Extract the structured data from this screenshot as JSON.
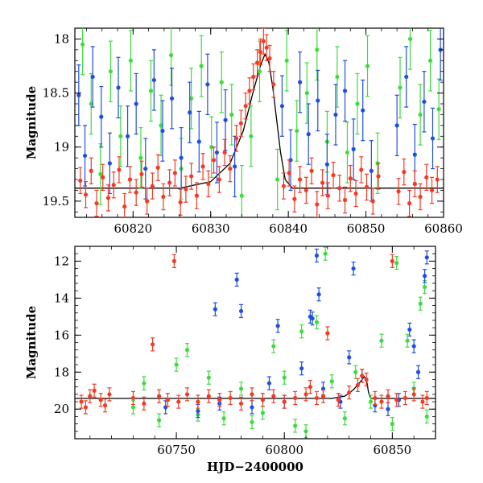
{
  "chart_data": [
    {
      "type": "scatter",
      "panel": "top",
      "xlabel": "",
      "ylabel": "Magnitude",
      "xlim": [
        60812.5,
        60860
      ],
      "ylim": [
        19.65,
        17.9
      ],
      "y_inverted": true,
      "xticks": [
        60820,
        60830,
        60840,
        60850,
        60860
      ],
      "yticks": [
        18,
        18.5,
        19,
        19.5
      ],
      "colors": {
        "blue": "#1f4fe0",
        "green": "#3ddc3d",
        "red": "#f23a24",
        "model": "#000000"
      },
      "series": [
        {
          "color": "red",
          "points": [
            [
              60813.2,
              19.31
            ],
            [
              60813.9,
              19.44
            ],
            [
              60814.6,
              19.22
            ],
            [
              60815.3,
              19.52
            ],
            [
              60816.1,
              19.28
            ],
            [
              60816.8,
              19.47
            ],
            [
              60817.5,
              19.35
            ],
            [
              60818.2,
              19.21
            ],
            [
              60818.9,
              19.55
            ],
            [
              60819.6,
              19.3
            ],
            [
              60820.4,
              19.42
            ],
            [
              60821.1,
              19.25
            ],
            [
              60821.8,
              19.5
            ],
            [
              60822.5,
              19.36
            ],
            [
              60823.2,
              19.19
            ],
            [
              60823.9,
              19.46
            ],
            [
              60824.7,
              19.33
            ],
            [
              60825.4,
              19.24
            ],
            [
              60826.1,
              19.51
            ],
            [
              60826.8,
              19.39
            ],
            [
              60827.5,
              19.27
            ],
            [
              60828.2,
              19.45
            ],
            [
              60829.0,
              19.18
            ],
            [
              60829.7,
              19.34
            ],
            [
              60830.4,
              19.12
            ],
            [
              60831.1,
              19.3
            ],
            [
              60831.8,
              19.05
            ],
            [
              60832.5,
              19.2
            ],
            [
              60833.3,
              18.92
            ],
            [
              60833.9,
              18.78
            ],
            [
              60834.5,
              18.62
            ],
            [
              60835.0,
              18.48
            ],
            [
              60835.5,
              18.35
            ],
            [
              60836.0,
              18.22
            ],
            [
              60836.4,
              18.12
            ],
            [
              60836.8,
              18.02
            ],
            [
              60837.2,
              18.08
            ],
            [
              60837.6,
              18.18
            ],
            [
              60838.1,
              18.42
            ],
            [
              60839.4,
              19.36
            ],
            [
              60840.1,
              19.24
            ],
            [
              60840.8,
              19.48
            ],
            [
              60841.5,
              19.3
            ],
            [
              60842.3,
              19.4
            ],
            [
              60843.0,
              19.22
            ],
            [
              60843.7,
              19.53
            ],
            [
              60844.4,
              19.33
            ],
            [
              60845.1,
              19.45
            ],
            [
              60845.8,
              19.26
            ],
            [
              60846.6,
              19.38
            ],
            [
              60847.3,
              19.49
            ],
            [
              60848.0,
              19.29
            ],
            [
              60848.7,
              19.43
            ],
            [
              60849.4,
              19.21
            ],
            [
              60850.1,
              19.37
            ],
            [
              60850.9,
              19.5
            ],
            [
              60851.6,
              19.27
            ],
            [
              60854.2,
              19.41
            ],
            [
              60854.9,
              19.23
            ],
            [
              60855.6,
              19.52
            ],
            [
              60856.3,
              19.34
            ],
            [
              60857.0,
              19.46
            ],
            [
              60857.8,
              19.28
            ],
            [
              60858.5,
              19.4
            ],
            [
              60859.2,
              19.3
            ]
          ]
        },
        {
          "color": "blue",
          "points": [
            [
              60813.0,
              18.52
            ],
            [
              60813.8,
              19.08
            ],
            [
              60814.8,
              18.35
            ],
            [
              60815.9,
              18.72
            ],
            [
              60817.0,
              19.15
            ],
            [
              60818.1,
              18.45
            ],
            [
              60819.3,
              18.9
            ],
            [
              60820.4,
              18.6
            ],
            [
              60821.6,
              19.2
            ],
            [
              60822.7,
              18.38
            ],
            [
              60823.8,
              18.85
            ],
            [
              60825.0,
              18.55
            ],
            [
              60826.2,
              19.1
            ],
            [
              60827.3,
              18.68
            ],
            [
              60828.5,
              18.95
            ],
            [
              60829.6,
              18.42
            ],
            [
              60830.8,
              19.05
            ],
            [
              60831.9,
              18.75
            ],
            [
              60833.1,
              19.18
            ],
            [
              60839.2,
              18.62
            ],
            [
              60840.3,
              19.12
            ],
            [
              60841.5,
              18.4
            ],
            [
              60842.6,
              18.88
            ],
            [
              60843.8,
              18.57
            ],
            [
              60845.0,
              19.16
            ],
            [
              60846.1,
              18.7
            ],
            [
              60847.3,
              18.48
            ],
            [
              60848.4,
              19.02
            ],
            [
              60849.6,
              18.66
            ],
            [
              60850.7,
              19.22
            ],
            [
              60854.0,
              18.8
            ],
            [
              60855.2,
              18.35
            ],
            [
              60856.3,
              19.07
            ],
            [
              60857.5,
              18.58
            ],
            [
              60858.6,
              18.92
            ],
            [
              60859.6,
              18.1
            ]
          ]
        },
        {
          "color": "green",
          "points": [
            [
              60813.5,
              18.05
            ],
            [
              60814.6,
              18.6
            ],
            [
              60815.8,
              19.25
            ],
            [
              60817.1,
              18.3
            ],
            [
              60818.4,
              18.9
            ],
            [
              60819.7,
              18.2
            ],
            [
              60821.0,
              19.1
            ],
            [
              60822.3,
              18.48
            ],
            [
              60823.6,
              18.8
            ],
            [
              60824.9,
              18.15
            ],
            [
              60826.2,
              19.2
            ],
            [
              60827.5,
              18.55
            ],
            [
              60828.8,
              18.25
            ],
            [
              60830.1,
              19.0
            ],
            [
              60831.4,
              18.4
            ],
            [
              60832.7,
              18.7
            ],
            [
              60834.0,
              19.45
            ],
            [
              60835.2,
              18.9
            ],
            [
              60836.3,
              18.3
            ],
            [
              60838.6,
              19.3
            ],
            [
              60839.8,
              18.2
            ],
            [
              60841.1,
              18.85
            ],
            [
              60842.4,
              18.5
            ],
            [
              60843.7,
              18.1
            ],
            [
              60845.0,
              18.95
            ],
            [
              60846.3,
              18.35
            ],
            [
              60847.6,
              19.05
            ],
            [
              60848.9,
              18.6
            ],
            [
              60850.2,
              18.25
            ],
            [
              60851.5,
              19.15
            ],
            [
              60854.4,
              18.45
            ],
            [
              60855.7,
              18.0
            ],
            [
              60857.0,
              18.7
            ],
            [
              60858.3,
              18.2
            ],
            [
              60859.4,
              18.65
            ]
          ]
        }
      ],
      "model": [
        [
          60812.5,
          19.38
        ],
        [
          60826.0,
          19.38
        ],
        [
          60830.0,
          19.32
        ],
        [
          60832.5,
          19.15
        ],
        [
          60834.2,
          18.85
        ],
        [
          60835.5,
          18.48
        ],
        [
          60836.4,
          18.25
        ],
        [
          60837.0,
          18.14
        ],
        [
          60837.5,
          18.22
        ],
        [
          60838.0,
          18.45
        ],
        [
          60838.5,
          18.75
        ],
        [
          60839.0,
          19.05
        ],
        [
          60839.6,
          19.3
        ],
        [
          60840.5,
          19.38
        ],
        [
          60860.0,
          19.38
        ]
      ]
    },
    {
      "type": "scatter",
      "panel": "bottom",
      "xlabel": "HJD−2400000",
      "ylabel": "Magnitude",
      "xlim": [
        60703,
        60870
      ],
      "ylim": [
        21.6,
        11.2
      ],
      "y_inverted": true,
      "xticks": [
        60750,
        60800,
        60850
      ],
      "yticks": [
        12,
        14,
        16,
        18,
        20
      ],
      "colors": {
        "blue": "#1f4fe0",
        "green": "#3ddc3d",
        "red": "#f23a24",
        "model": "#000000"
      },
      "series": [
        {
          "color": "red",
          "points": [
            [
              60706,
              19.6
            ],
            [
              60708,
              19.9
            ],
            [
              60710,
              19.3
            ],
            [
              60712,
              19.0
            ],
            [
              60715,
              19.5
            ],
            [
              60717,
              19.8
            ],
            [
              60719,
              19.2
            ],
            [
              60730,
              19.4
            ],
            [
              60735,
              19.7
            ],
            [
              60739,
              16.5
            ],
            [
              60742,
              19.3
            ],
            [
              60746,
              19.5
            ],
            [
              60749,
              12.0
            ],
            [
              60751,
              19.6
            ],
            [
              60755,
              19.2
            ],
            [
              60760,
              19.6
            ],
            [
              60765,
              19.3
            ],
            [
              60770,
              19.5
            ],
            [
              60775,
              19.4
            ],
            [
              60780,
              19.7
            ],
            [
              60785,
              19.2
            ],
            [
              60790,
              19.5
            ],
            [
              60795,
              19.3
            ],
            [
              60800,
              19.6
            ],
            [
              60805,
              19.4
            ],
            [
              60810,
              19.2
            ],
            [
              60812,
              18.8
            ],
            [
              60815,
              19.4
            ],
            [
              60818,
              19.3
            ],
            [
              60820,
              15.9
            ],
            [
              60825,
              19.5
            ],
            [
              60830,
              19.1
            ],
            [
              60834,
              18.7
            ],
            [
              60836,
              18.2
            ],
            [
              60838,
              18.4
            ],
            [
              60842,
              19.4
            ],
            [
              60845,
              19.6
            ],
            [
              60848,
              19.3
            ],
            [
              60850,
              12.0
            ],
            [
              60852,
              19.5
            ],
            [
              60856,
              19.4
            ],
            [
              60860,
              19.2
            ],
            [
              60864,
              19.6
            ],
            [
              60866,
              19.4
            ]
          ]
        },
        {
          "color": "blue",
          "points": [
            [
              60745,
              19.9
            ],
            [
              60760,
              20.1
            ],
            [
              60768,
              14.6
            ],
            [
              60770,
              19.7
            ],
            [
              60778,
              13.0
            ],
            [
              60780,
              14.7
            ],
            [
              60785,
              19.9
            ],
            [
              60793,
              18.6
            ],
            [
              60797,
              15.5
            ],
            [
              60800,
              19.6
            ],
            [
              60808,
              17.8
            ],
            [
              60812,
              15.0
            ],
            [
              60813,
              15.1
            ],
            [
              60815,
              11.7
            ],
            [
              60816,
              13.8
            ],
            [
              60818,
              18.9
            ],
            [
              60826,
              19.6
            ],
            [
              60830,
              17.2
            ],
            [
              60832,
              12.4
            ],
            [
              60836,
              18.2
            ],
            [
              60842,
              19.8
            ],
            [
              60848,
              20.0
            ],
            [
              60853,
              19.5
            ],
            [
              60858,
              15.7
            ],
            [
              60860,
              16.6
            ],
            [
              60862,
              18.0
            ],
            [
              60865,
              12.8
            ],
            [
              60866,
              11.8
            ]
          ]
        },
        {
          "color": "green",
          "points": [
            [
              60730,
              19.9
            ],
            [
              60735,
              18.6
            ],
            [
              60742,
              20.6
            ],
            [
              60750,
              17.6
            ],
            [
              60755,
              16.8
            ],
            [
              60760,
              20.3
            ],
            [
              60765,
              18.3
            ],
            [
              60772,
              20.5
            ],
            [
              60780,
              18.9
            ],
            [
              60785,
              20.7
            ],
            [
              60790,
              20.2
            ],
            [
              60795,
              16.6
            ],
            [
              60800,
              18.3
            ],
            [
              60805,
              20.9
            ],
            [
              60808,
              15.8
            ],
            [
              60810,
              21.2
            ],
            [
              60815,
              15.3
            ],
            [
              60819,
              11.6
            ],
            [
              60822,
              18.5
            ],
            [
              60828,
              20.5
            ],
            [
              60833,
              18.0
            ],
            [
              60840,
              19.6
            ],
            [
              60845,
              16.3
            ],
            [
              60850,
              20.8
            ],
            [
              60852,
              12.1
            ],
            [
              60857,
              16.3
            ],
            [
              60860,
              18.9
            ],
            [
              60863,
              14.3
            ],
            [
              60865,
              13.4
            ],
            [
              60866,
              20.4
            ]
          ]
        }
      ],
      "model": [
        [
          60703,
          19.42
        ],
        [
          60822,
          19.42
        ],
        [
          60828,
          19.3
        ],
        [
          60832,
          18.95
        ],
        [
          60835,
          18.55
        ],
        [
          60837,
          18.25
        ],
        [
          60838,
          18.4
        ],
        [
          60839,
          19.1
        ],
        [
          60840,
          19.42
        ],
        [
          60870,
          19.42
        ]
      ]
    }
  ]
}
